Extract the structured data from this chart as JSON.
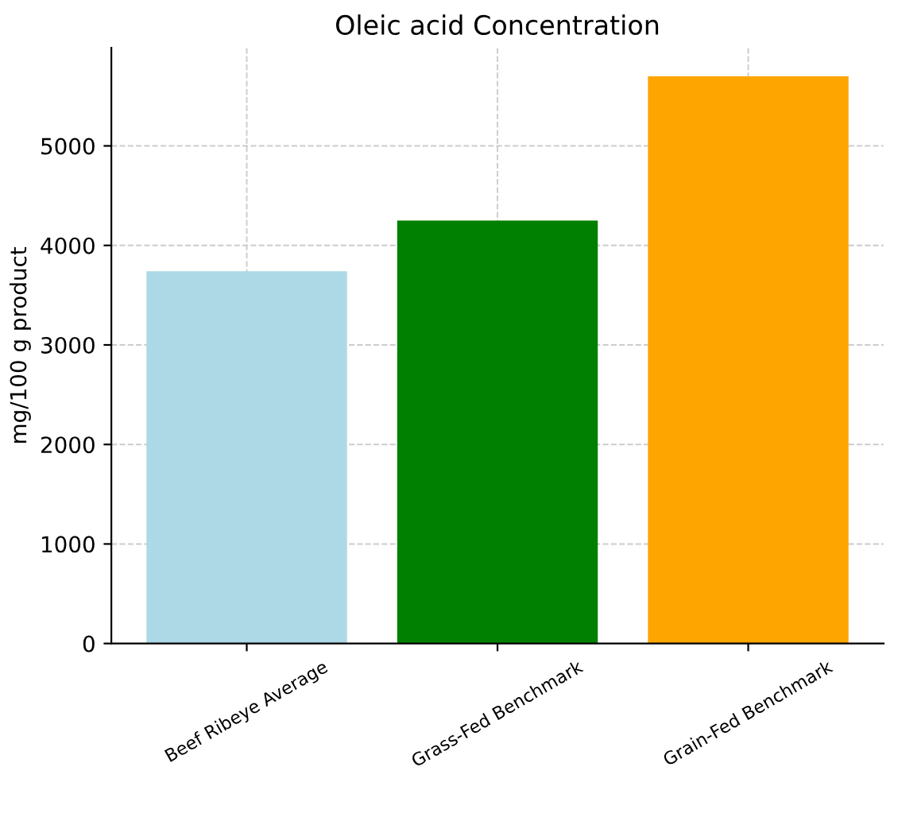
{
  "chart_data": {
    "type": "bar",
    "title": "Oleic acid Concentration",
    "ylabel": "mg/100 g product",
    "categories": [
      "Beef Ribeye Average",
      "Grass-Fed Benchmark",
      "Grain-Fed Benchmark"
    ],
    "values": [
      3740,
      4250,
      5700
    ],
    "colors": [
      "#add8e6",
      "#008000",
      "#ffa500"
    ],
    "ylim": [
      0,
      5985
    ],
    "yticks": [
      0,
      1000,
      2000,
      3000,
      4000,
      5000
    ],
    "grid": true,
    "line_style": "dashed"
  }
}
